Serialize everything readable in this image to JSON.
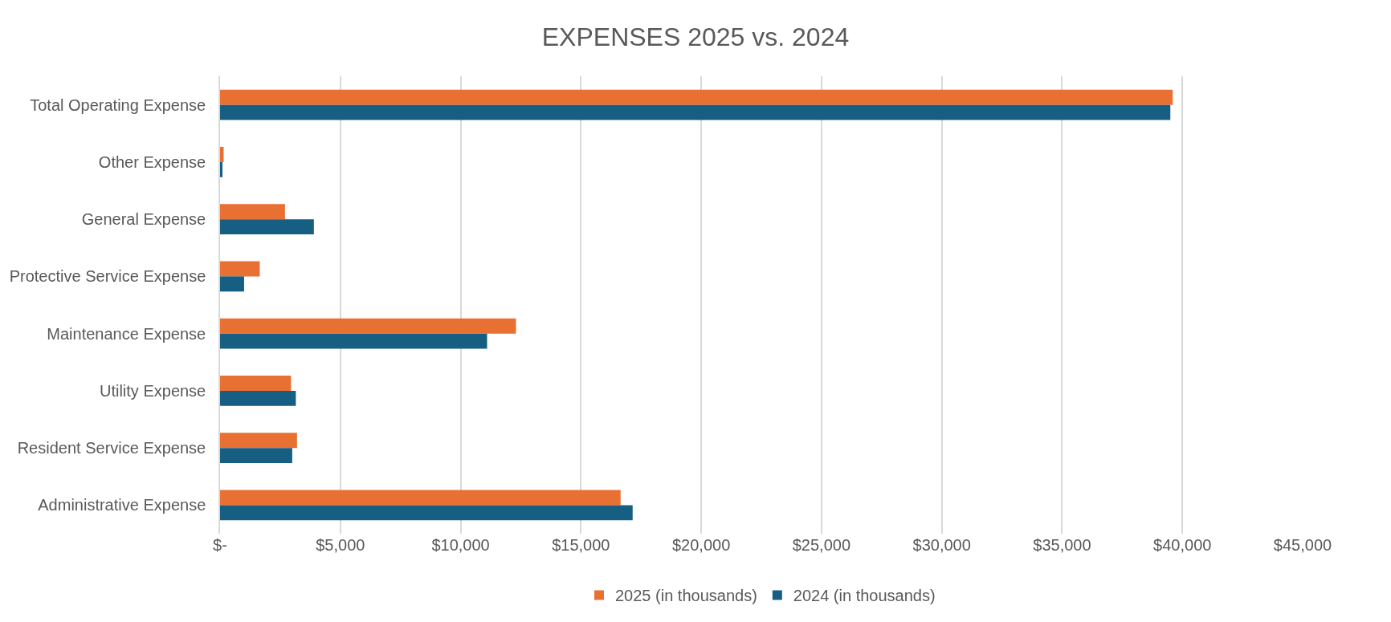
{
  "chart_data": {
    "type": "bar",
    "orientation": "horizontal",
    "title": "EXPENSES 2025 vs. 2024",
    "categories": [
      "Total Operating Expense",
      "Other Expense",
      "General Expense",
      "Protective Service Expense",
      "Maintenance Expense",
      "Utility Expense",
      "Resident Service Expense",
      "Administrative Expense"
    ],
    "series": [
      {
        "name": "2025 (in thousands)",
        "color": "#e87033",
        "values": [
          39600,
          150,
          2700,
          1650,
          12300,
          2950,
          3200,
          16650
        ]
      },
      {
        "name": "2024 (in thousands)",
        "color": "#175f82",
        "values": [
          39500,
          100,
          3900,
          1000,
          11100,
          3150,
          3000,
          17150
        ]
      }
    ],
    "xlim": [
      0,
      45000
    ],
    "xticks": [
      {
        "value": 0,
        "label": "$-"
      },
      {
        "value": 5000,
        "label": "$5,000"
      },
      {
        "value": 10000,
        "label": "$10,000"
      },
      {
        "value": 15000,
        "label": "$15,000"
      },
      {
        "value": 20000,
        "label": "$20,000"
      },
      {
        "value": 25000,
        "label": "$25,000"
      },
      {
        "value": 30000,
        "label": "$30,000"
      },
      {
        "value": 35000,
        "label": "$35,000"
      },
      {
        "value": 40000,
        "label": "$40,000"
      },
      {
        "value": 45000,
        "label": "$45,000"
      }
    ],
    "grid": "x",
    "legend": "bottom"
  }
}
